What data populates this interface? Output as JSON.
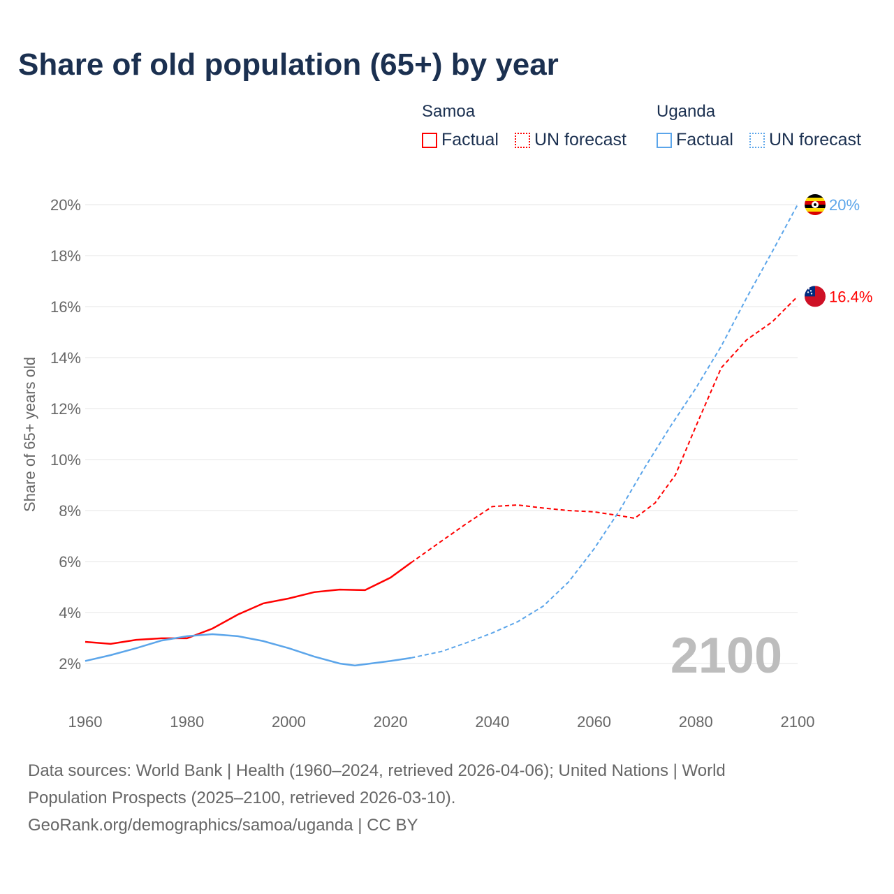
{
  "title": "Share of old population (65+) by year",
  "legend": {
    "groups": [
      {
        "country": "Samoa",
        "factual": "Factual",
        "forecast": "UN forecast",
        "color": "#ff0000"
      },
      {
        "country": "Uganda",
        "factual": "Factual",
        "forecast": "UN forecast",
        "color": "#5ba5ea"
      }
    ]
  },
  "year_watermark": "2100",
  "footer": {
    "line1": "Data sources: World Bank | Health (1960–2024, retrieved 2026-04-06); United Nations | World",
    "line2": "Population Prospects (2025–2100, retrieved 2026-03-10).",
    "line3": "GeoRank.org/demographics/samoa/uganda | CC BY"
  },
  "chart_data": {
    "type": "line",
    "title": "Share of old population (65+) by year",
    "xlabel": "",
    "ylabel": "Share of 65+ years old",
    "xlim": [
      1960,
      2100
    ],
    "ylim": [
      1,
      20.5
    ],
    "xticks": [
      "1960",
      "1980",
      "2000",
      "2020",
      "2040",
      "2060",
      "2080",
      "2100"
    ],
    "yticks": [
      "2%",
      "4%",
      "6%",
      "8%",
      "10%",
      "12%",
      "14%",
      "16%",
      "18%",
      "20%"
    ],
    "forecast_start": 2024,
    "series": [
      {
        "name": "Samoa",
        "color": "#ff0000",
        "end_label": "16.4%",
        "flag": "samoa-flag",
        "x": [
          1960,
          1965,
          1970,
          1975,
          1980,
          1985,
          1990,
          1995,
          2000,
          2005,
          2010,
          2015,
          2020,
          2024,
          2030,
          2035,
          2040,
          2045,
          2050,
          2055,
          2060,
          2065,
          2068,
          2072,
          2076,
          2080,
          2085,
          2090,
          2095,
          2100
        ],
        "y": [
          2.85,
          2.77,
          2.93,
          2.99,
          2.99,
          3.37,
          3.92,
          4.36,
          4.55,
          4.8,
          4.9,
          4.88,
          5.37,
          5.95,
          6.8,
          7.5,
          8.16,
          8.22,
          8.1,
          8.0,
          7.95,
          7.8,
          7.7,
          8.3,
          9.4,
          11.3,
          13.6,
          14.7,
          15.4,
          16.4
        ]
      },
      {
        "name": "Uganda",
        "color": "#5ba5ea",
        "end_label": "20%",
        "flag": "uganda-flag",
        "x": [
          1960,
          1965,
          1970,
          1975,
          1980,
          1985,
          1990,
          1995,
          2000,
          2005,
          2010,
          2013,
          2020,
          2024,
          2030,
          2035,
          2040,
          2045,
          2050,
          2055,
          2060,
          2065,
          2070,
          2075,
          2080,
          2085,
          2090,
          2095,
          2100
        ],
        "y": [
          2.1,
          2.33,
          2.6,
          2.9,
          3.07,
          3.15,
          3.07,
          2.88,
          2.6,
          2.27,
          2.0,
          1.92,
          2.1,
          2.22,
          2.47,
          2.82,
          3.2,
          3.64,
          4.25,
          5.2,
          6.5,
          8.0,
          9.7,
          11.3,
          12.8,
          14.45,
          16.35,
          18.15,
          20.0
        ]
      }
    ]
  }
}
